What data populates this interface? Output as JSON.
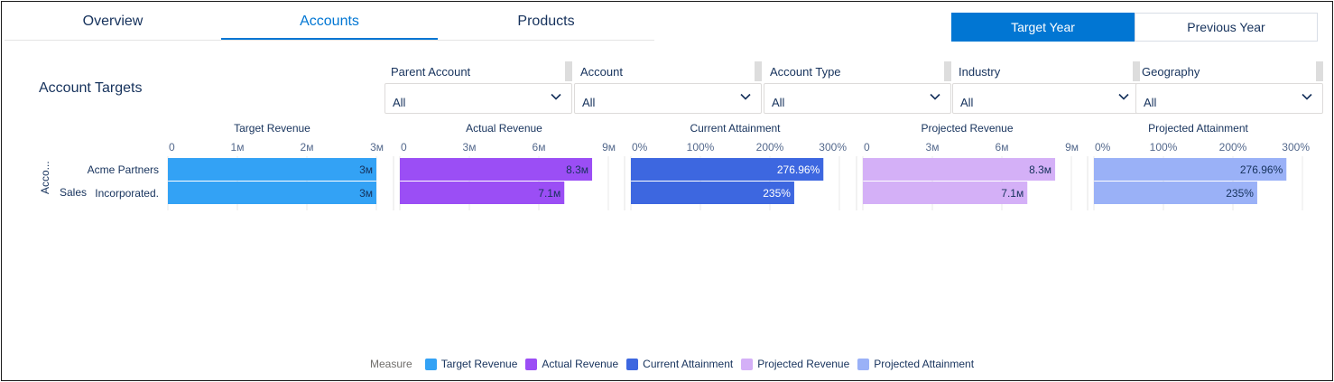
{
  "tabs": [
    {
      "label": "Overview",
      "active": false
    },
    {
      "label": "Accounts",
      "active": true
    },
    {
      "label": "Products",
      "active": false
    }
  ],
  "year_toggle": {
    "target": "Target Year",
    "previous": "Previous Year",
    "selected": "Target Year"
  },
  "section_title": "Account Targets",
  "filters": [
    {
      "label": "Parent Account",
      "value": "All"
    },
    {
      "label": "Account",
      "value": "All"
    },
    {
      "label": "Account Type",
      "value": "All"
    },
    {
      "label": "Industry",
      "value": "All"
    },
    {
      "label": "Geography",
      "value": "All"
    }
  ],
  "colors": {
    "accent": "#0176d3",
    "target_revenue": "#33a2f5",
    "actual_revenue": "#9b4ef5",
    "current_attainment": "#3d67e0",
    "projected_revenue": "#d4b0f7",
    "projected_attainment": "#9ab1f7"
  },
  "chart_data": {
    "type": "bar",
    "orientation": "horizontal",
    "row_axis_label": "Acco...",
    "categories": [
      "Acme Partners",
      "Sales Incorporated."
    ],
    "category_display": [
      [
        "Acme Partners"
      ],
      [
        "Sales",
        "Incorporated."
      ]
    ],
    "panels": [
      {
        "name": "Target Revenue",
        "ticks": [
          "0",
          "1м",
          "2м",
          "3м"
        ],
        "xlim": [
          0,
          3
        ],
        "values": [
          3,
          3
        ],
        "labels": [
          "3м",
          "3м"
        ],
        "color": "#33a2f5",
        "label_color": "#16325c"
      },
      {
        "name": "Actual Revenue",
        "ticks": [
          "0",
          "3м",
          "6м",
          "9м"
        ],
        "xlim": [
          0,
          9
        ],
        "values": [
          8.3,
          7.1
        ],
        "labels": [
          "8.3м",
          "7.1м"
        ],
        "color": "#9b4ef5",
        "label_color": "#16325c"
      },
      {
        "name": "Current Attainment",
        "ticks": [
          "0%",
          "100%",
          "200%",
          "300%"
        ],
        "xlim": [
          0,
          300
        ],
        "values": [
          276.96,
          235
        ],
        "labels": [
          "276.96%",
          "235%"
        ],
        "color": "#3d67e0",
        "label_color": "#ffffff"
      },
      {
        "name": "Projected Revenue",
        "ticks": [
          "0",
          "3м",
          "6м",
          "9м"
        ],
        "xlim": [
          0,
          9
        ],
        "values": [
          8.3,
          7.1
        ],
        "labels": [
          "8.3м",
          "7.1м"
        ],
        "color": "#d4b0f7",
        "label_color": "#16325c"
      },
      {
        "name": "Projected Attainment",
        "ticks": [
          "0%",
          "100%",
          "200%",
          "300%"
        ],
        "xlim": [
          0,
          300
        ],
        "values": [
          276.96,
          235
        ],
        "labels": [
          "276.96%",
          "235%"
        ],
        "color": "#9ab1f7",
        "label_color": "#16325c"
      }
    ],
    "legend": {
      "title": "Measure",
      "placement": "bottom-center",
      "items": [
        "Target Revenue",
        "Actual Revenue",
        "Current Attainment",
        "Projected Revenue",
        "Projected Attainment"
      ]
    },
    "grid": true
  }
}
